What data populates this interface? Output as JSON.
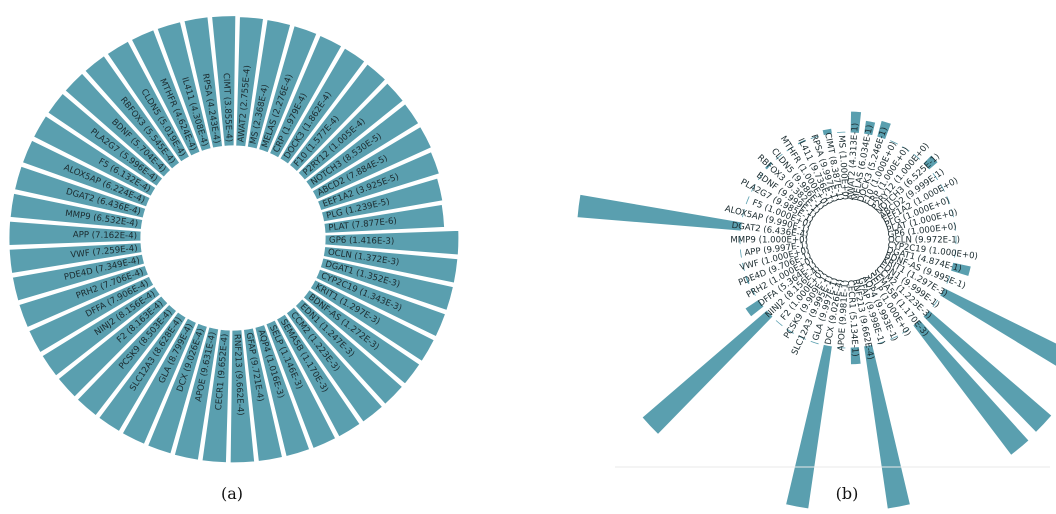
{
  "chart_data": [
    {
      "type": "bar",
      "layout": "circular",
      "panel_label": "(a)",
      "color": "#5a9faf",
      "categories": [
        "PLAT",
        "PLG",
        "EEF1A2",
        "ABCD2",
        "NOTCH3",
        "P2RY12",
        "F10",
        "DOCK3",
        "CRP",
        "MELAS",
        "MS",
        "AWAT2",
        "CIMT",
        "RPSA",
        "IL411",
        "MTHFR",
        "CLDN5",
        "RBFOX3",
        "BDNF",
        "PLA2G7",
        "F5",
        "ALOX5AP",
        "DGAT2",
        "MMP9",
        "APP",
        "VWF",
        "PDE4D",
        "PRH2",
        "DFFA",
        "NINJ2",
        "F2",
        "PCSK9",
        "SLC12A3",
        "GLA",
        "DCX",
        "APOE",
        "CECR1",
        "RNF213",
        "GFAP",
        "AQP4",
        "SELP",
        "SEMA5B",
        "CCM2",
        "EDN1",
        "BDNF-AS",
        "KRIT1",
        "CYP2C19",
        "DGAT1",
        "OCLN",
        "GP6"
      ],
      "labels": [
        "PLAT (7.877E-6)",
        "PLG (1.239E-5)",
        "EEF1A2 (3.925E-5)",
        "ABCD2 (7.884E-5)",
        "NOTCH3 (8.530E-5)",
        "P2RY12 (1.005E-4)",
        "F10 (1.577E-4)",
        "DOCK3 (1.862E-4)",
        "CRP (1.979E-4)",
        "MELAS (2.276E-4)",
        "MS (2.368E-4)",
        "AWAT2 (2.755E-4)",
        "CIMT (3.855E-4)",
        "RPSA (4.243E-4)",
        "IL411 (4.308E-4)",
        "MTHFR (4.624E-4)",
        "CLDN5 (5.019E-4)",
        "RBFOX3 (5.545E-4)",
        "BDNF (5.704E-4)",
        "PLA2G7 (5.996E-4)",
        "F5 (6.132E-4)",
        "ALOX5AP (6.224E-4)",
        "DGAT2 (6.436E-4)",
        "MMP9 (6.532E-4)",
        "APP (7.162E-4)",
        "VWF (7.259E-4)",
        "PDE4D (7.349E-4)",
        "PRH2 (7.706E-4)",
        "DFFA (7.906E-4)",
        "NINJ2 (8.156E-4)",
        "F2 (8.163E-4)",
        "PCSK9 (8.503E-4)",
        "SLC12A3 (8.628E-4)",
        "GLA (8.799E-4)",
        "DCX (9.026E-4)",
        "APOE (9.631E-4)",
        "CECR1 (9.652E-4)",
        "RNF213 (9.662E-4)",
        "GFAP (9.721E-4)",
        "AQP4 (1.016E-3)",
        "SELP (1.146E-3)",
        "SEMA5B (1.170E-3)",
        "CCM2 (1.223E-3)",
        "EDN1 (1.247E-3)",
        "BDNF-AS (1.272E-3)",
        "KRIT1 (1.297E-3)",
        "CYP2C19 (1.343E-3)",
        "DGAT1 (1.352E-3)",
        "OCLN (1.372E-3)",
        "GP6 (1.416E-3)"
      ],
      "values": [
        7.877e-06,
        1.239e-05,
        3.925e-05,
        7.884e-05,
        8.53e-05,
        0.0001005,
        0.0001577,
        0.0001862,
        0.0001979,
        0.0002276,
        0.0002368,
        0.0002755,
        0.0003855,
        0.0004243,
        0.0004308,
        0.0004624,
        0.0005019,
        0.0005545,
        0.0005704,
        0.0005996,
        0.0006132,
        0.0006224,
        0.0006436,
        0.0006532,
        0.0007162,
        0.0007259,
        0.0007349,
        0.0007706,
        0.0007906,
        0.0008156,
        0.0008163,
        0.0008503,
        0.0008628,
        0.0008799,
        0.0009026,
        0.0009631,
        0.0009652,
        0.0009662,
        0.0009721,
        0.001016,
        0.001146,
        0.00117,
        0.001223,
        0.001247,
        0.001272,
        0.001297,
        0.001343,
        0.001352,
        0.001372,
        0.001416
      ],
      "radial_scale": "log",
      "radial_range": [
        7.877e-06,
        0.001416
      ],
      "grid": false
    },
    {
      "type": "bar",
      "layout": "circular",
      "panel_label": "(b)",
      "color": "#5a9faf",
      "categories": [
        "AWAT2",
        "MELAS",
        "DOCK3",
        "F10",
        "CRP",
        "P2RY12",
        "NOTCH3",
        "ABCD2",
        "EEF1A2",
        "PLG",
        "PLAT",
        "GP6",
        "OCLN",
        "CYP2C19",
        "DGAT1",
        "BDNF-AS",
        "KRIT1",
        "EDN1",
        "CCM2",
        "SEMA5B",
        "SELP",
        "AQP4",
        "GFAP",
        "RNF213",
        "CECR1",
        "APOE",
        "DCX",
        "GLA",
        "SLC12A3",
        "PCSK9",
        "F2",
        "NINJ2",
        "DFFA",
        "PRH2",
        "PDE4D",
        "VWF",
        "APP",
        "MMP9",
        "DGAT2",
        "ALOX5AP",
        "F5",
        "PLA2G7",
        "BDNF",
        "RBFOX3",
        "CLDN5",
        "MTHFR",
        "IL411",
        "RPSA",
        "CIMT",
        "MS"
      ],
      "labels": [
        "AWAT2 (4.313E-1)",
        "MELAS (6.034E-1)",
        "DOCK3 (5.246E-1)",
        "F10 (1.000E+0)",
        "CRP (1.000E+0)",
        "P2RY12 (1.000E+0)",
        "NOTCH3 (6.525E-1)",
        "ABCD2 (9.999E-1)",
        "EEF1A2 (1.000E+0)",
        "PLG (1.000E+0)",
        "PLAT (1.000E+0)",
        "GP6 (1.000E+0)",
        "OCLN (9.972E-1)",
        "CYP2C19 (1.000E+0)",
        "DGAT1 (4.874E-1)",
        "BDNF-AS (9.995E-1)",
        "KRIT1 (1.297E-3)",
        "EDN1 (9.999E-1)",
        "CCM2 (1.223E-3)",
        "SEMA5B (1.170E-3)",
        "SELP (1.000E+0)",
        "AQP4 (9.993E-1)",
        "GFAP (9.998E-1)",
        "RNF213 (9.662E-4)",
        "CECR1 (5.134E-1)",
        "APOE (9.981E-1)",
        "DCX (9.026E-4)",
        "GLA (9.997E-1)",
        "SLC12A3 (9.995E-1)",
        "PCSK9 (9.909E-1)",
        "F2 (1.000E+0)",
        "NINJ2 (8.156E-4)",
        "DFFA (5.364E-1)",
        "PRH2 (1.000E+0)",
        "PDE4D (9.706E-1)",
        "VWF (1.000E+0)",
        "APP (9.997E-1)",
        "MMP9 (1.000E+0)",
        "DGAT2 (6.436E-4)",
        "ALOX5AP (9.990E-1)",
        "F5 (1.000E+0)",
        "PLA2G7 (9.985E-1)",
        "BDNF (9.999E-1)",
        "RBFOX3 (9.382E-1)",
        "CLDN5 (9.986E-1)",
        "MTHFR (1.000E+0)",
        "IL411 (9.736E-1)",
        "RPSA (9.997E-1)",
        "CIMT (8.387E-1)",
        "MS (1.000E+0)"
      ],
      "values": [
        0.4313,
        0.6034,
        0.5246,
        1.0,
        1.0,
        1.0,
        0.6525,
        0.9999,
        1.0,
        1.0,
        1.0,
        1.0,
        0.9972,
        1.0,
        0.4874,
        0.9995,
        0.001297,
        0.9999,
        0.001223,
        0.00117,
        1.0,
        0.9993,
        0.9998,
        0.0009662,
        0.5134,
        0.9981,
        0.0009026,
        0.9997,
        0.9995,
        0.9909,
        1.0,
        0.0008156,
        0.5364,
        1.0,
        0.9706,
        1.0,
        0.9997,
        1.0,
        0.0006436,
        0.999,
        1.0,
        0.9985,
        0.9999,
        0.9382,
        0.9986,
        1.0,
        0.9736,
        0.9997,
        0.8387,
        1.0
      ],
      "radial_scale": "inverse-log",
      "grid": false
    }
  ]
}
